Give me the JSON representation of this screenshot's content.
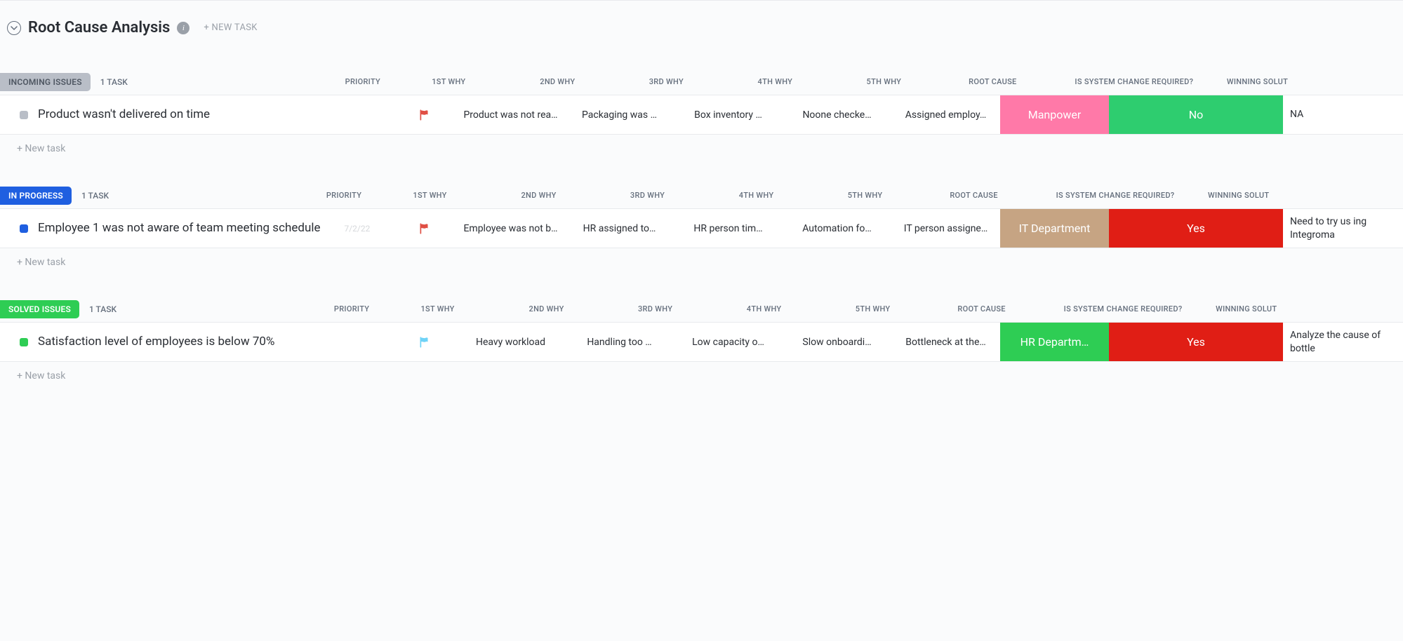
{
  "header": {
    "title": "Root Cause Analysis",
    "new_task_label": "+ NEW TASK"
  },
  "columns": {
    "priority": "PRIORITY",
    "why1": "1ST WHY",
    "why2": "2ND WHY",
    "why3": "3RD WHY",
    "why4": "4TH WHY",
    "why5": "5TH WHY",
    "root_cause": "ROOT CAUSE",
    "system_change": "IS SYSTEM CHANGE REQUIRED?",
    "winning_solution": "WINNING SOLUT"
  },
  "new_task_row_label": "+ New task",
  "groups": [
    {
      "id": "incoming",
      "label": "INCOMING ISSUES",
      "count_label": "1 TASK",
      "pill_bg": "#b9bec7",
      "pill_fg": "#4f5762",
      "status_dot": "#b9bec7",
      "tasks": [
        {
          "name": "Product wasn't delivered on time",
          "date": "",
          "priority_color": "#e04f44",
          "why1": "Product was not rea…",
          "why2": "Packaging was …",
          "why3": "Box inventory …",
          "why4": "Noone checke…",
          "why5": "Assigned employ…",
          "root_cause": {
            "text": "Manpower",
            "bg": "#ff79a8"
          },
          "system_change": {
            "text": "No",
            "bg": "#2ecd6f"
          },
          "winning": "NA"
        }
      ]
    },
    {
      "id": "inprogress",
      "label": "IN PROGRESS",
      "count_label": "1 TASK",
      "pill_bg": "#1f5fe0",
      "pill_fg": "#ffffff",
      "status_dot": "#1f5fe0",
      "tasks": [
        {
          "name": "Employee 1 was not aware of team meeting schedule",
          "date": "7/2/22",
          "priority_color": "#e04f44",
          "why1": "Employee was not b…",
          "why2": "HR assigned to…",
          "why3": "HR person tim…",
          "why4": "Automation fo…",
          "why5": "IT person assigne…",
          "root_cause": {
            "text": "IT Department",
            "bg": "#c6a483"
          },
          "system_change": {
            "text": "Yes",
            "bg": "#e01e15"
          },
          "winning": "Need to try us ing Integroma"
        }
      ]
    },
    {
      "id": "solved",
      "label": "SOLVED ISSUES",
      "count_label": "1 TASK",
      "pill_bg": "#2ecd54",
      "pill_fg": "#ffffff",
      "status_dot": "#2ecd54",
      "tasks": [
        {
          "name": "Satisfaction level of employees is below 70%",
          "date": "",
          "priority_color": "#6fd3f7",
          "why1": "Heavy workload",
          "why2": "Handling too …",
          "why3": "Low capacity o…",
          "why4": "Slow onboardi…",
          "why5": "Bottleneck at the…",
          "root_cause": {
            "text": "HR Departm…",
            "bg": "#2ecd54"
          },
          "system_change": {
            "text": "Yes",
            "bg": "#e01e15"
          },
          "winning": "Analyze the cause of bottle"
        }
      ]
    }
  ]
}
